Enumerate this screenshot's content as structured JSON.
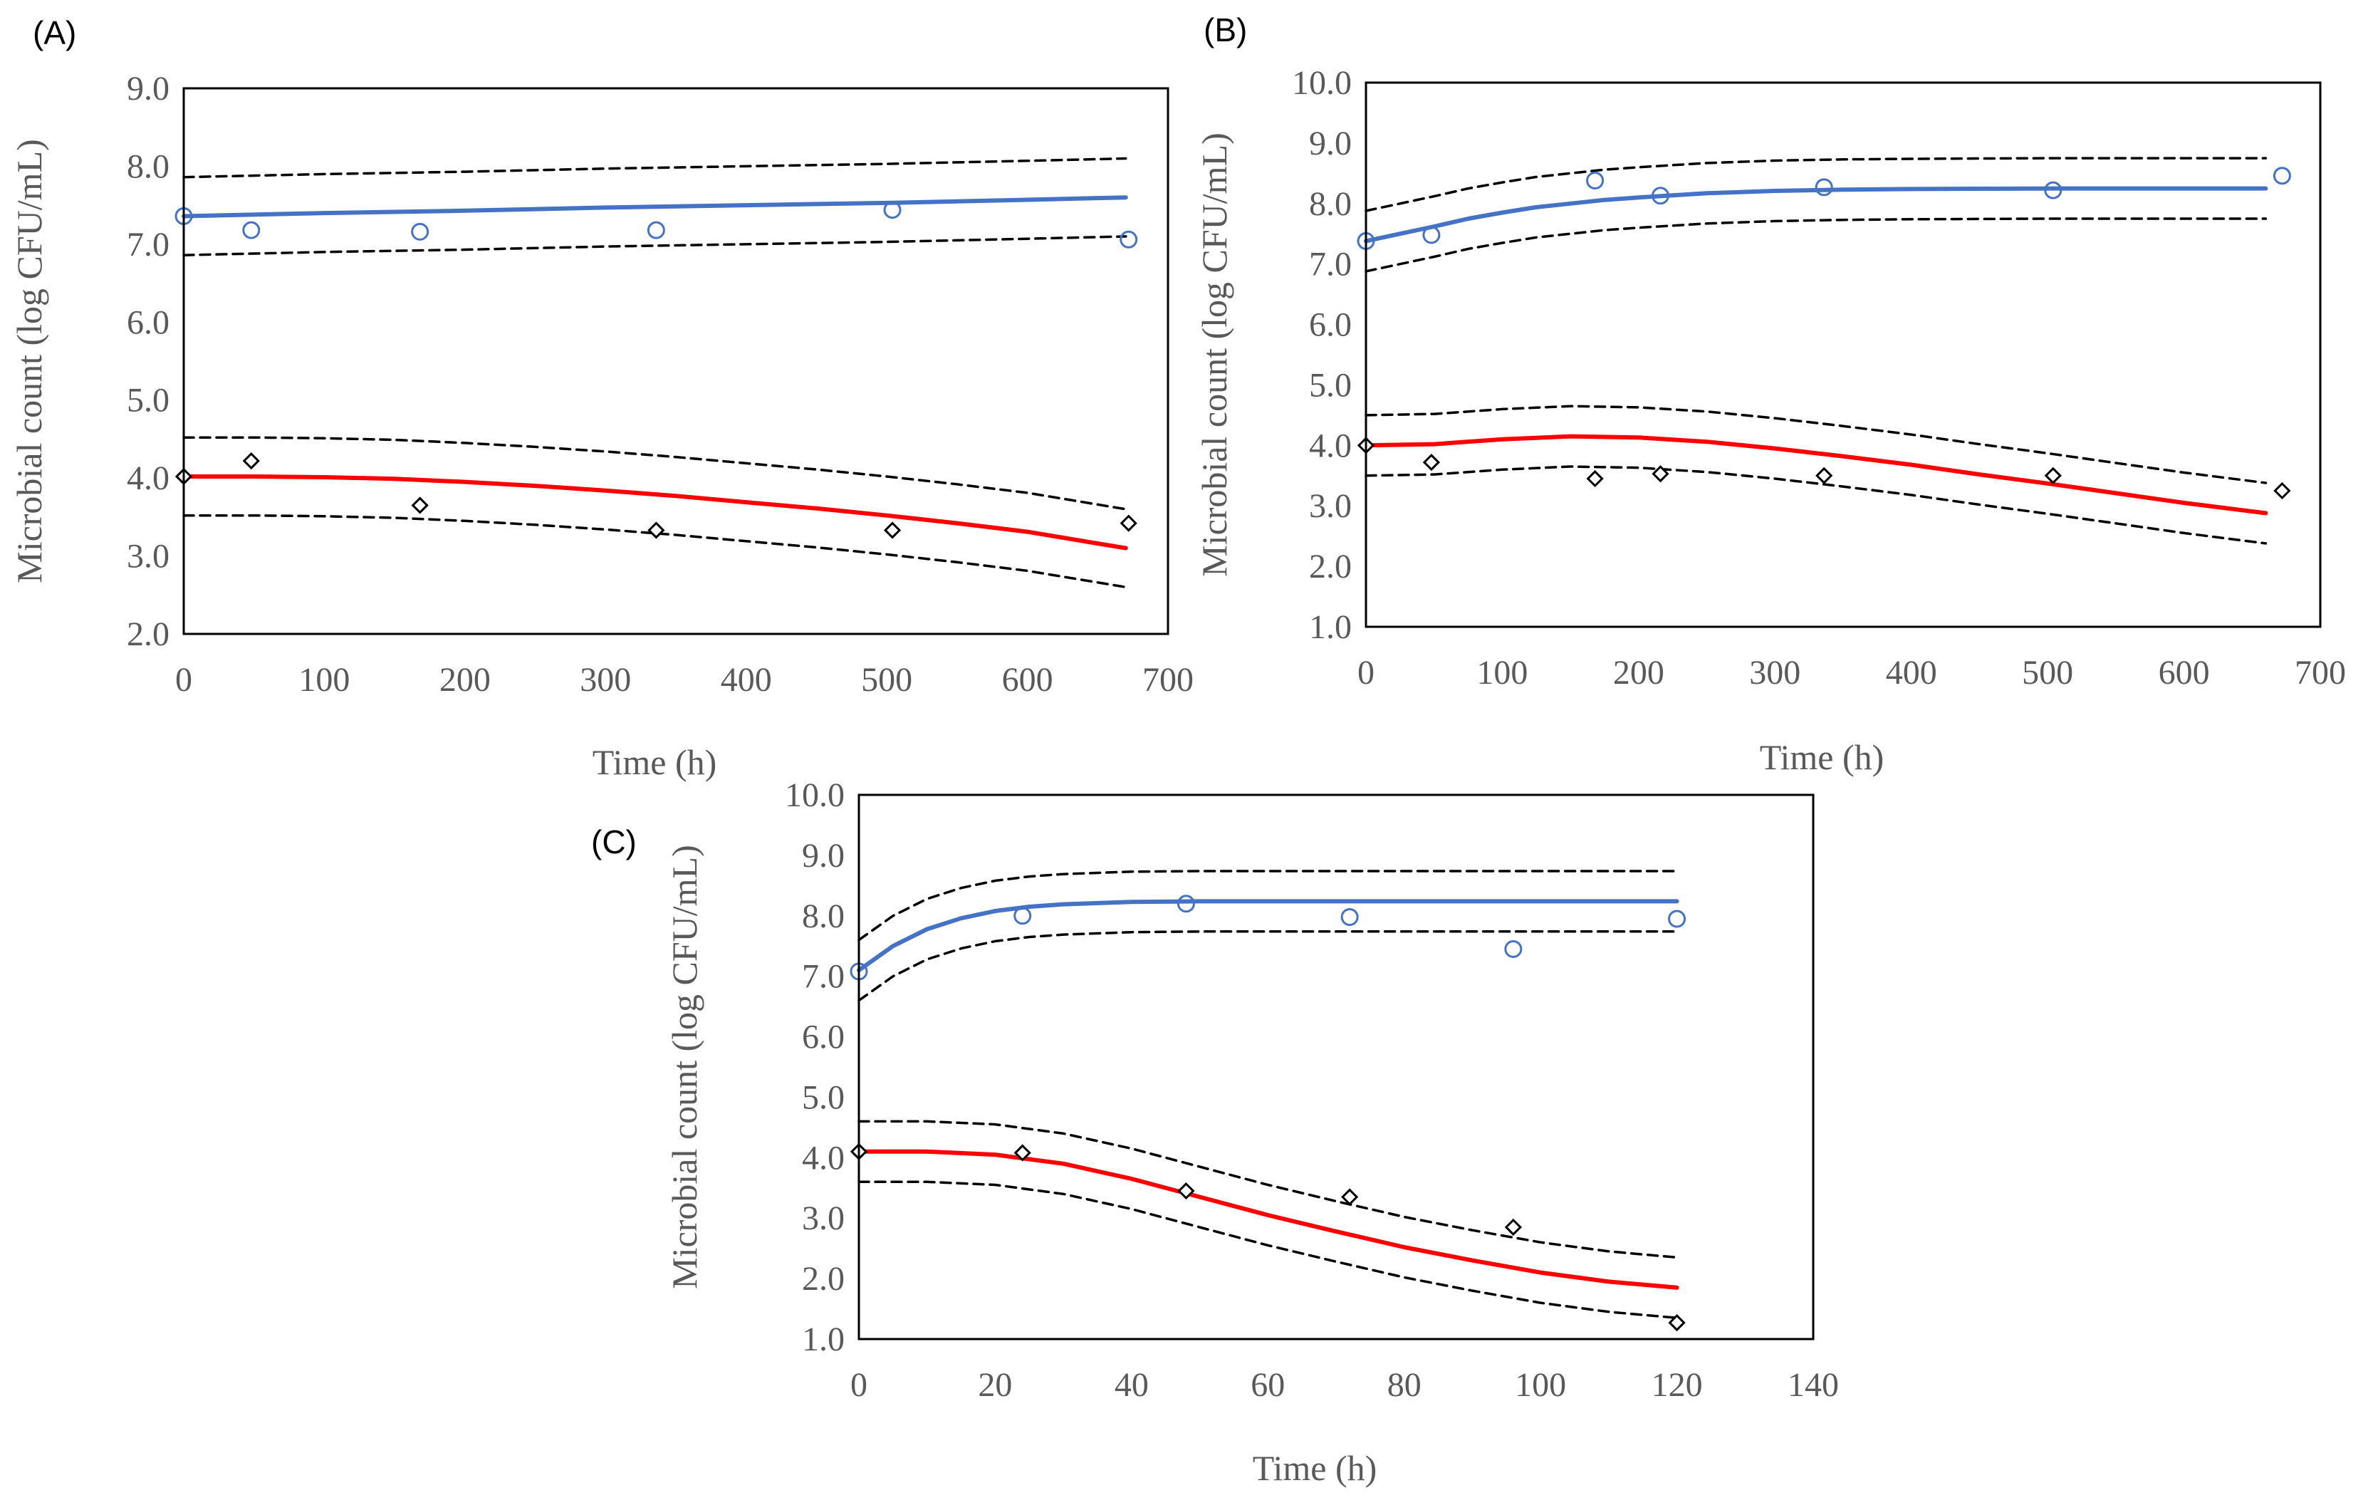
{
  "chart_data": [
    {
      "type": "line",
      "panel_label": "(A)",
      "xlabel": "Time (h)",
      "ylabel": "Microbial count (log CFU/mL)",
      "xlim": [
        0,
        700
      ],
      "ylim": [
        2.0,
        9.0
      ],
      "xticks": [
        "0",
        "100",
        "200",
        "300",
        "400",
        "500",
        "600",
        "700"
      ],
      "yticks": [
        "2.0",
        "3.0",
        "4.0",
        "5.0",
        "6.0",
        "7.0",
        "8.0",
        "9.0"
      ],
      "grid": false,
      "legend": "none",
      "series": [
        {
          "role": "fit",
          "group": "upper",
          "style": "solid",
          "color": "#4472C4",
          "x": [
            0,
            100,
            200,
            300,
            400,
            500,
            600,
            670
          ],
          "y": [
            7.36,
            7.4,
            7.43,
            7.47,
            7.5,
            7.53,
            7.57,
            7.6
          ]
        },
        {
          "role": "band",
          "group": "upper",
          "style": "dashed",
          "color": "#000000",
          "x": [
            0,
            100,
            200,
            300,
            400,
            500,
            600,
            670
          ],
          "y": [
            7.86,
            7.9,
            7.93,
            7.97,
            8.0,
            8.03,
            8.07,
            8.1
          ]
        },
        {
          "role": "band",
          "group": "upper",
          "style": "dashed",
          "color": "#000000",
          "x": [
            0,
            100,
            200,
            300,
            400,
            500,
            600,
            670
          ],
          "y": [
            6.86,
            6.9,
            6.93,
            6.97,
            7.0,
            7.03,
            7.07,
            7.1
          ]
        },
        {
          "role": "observed",
          "group": "upper",
          "marker": "circle",
          "color": "#4472C4",
          "x": [
            0,
            48,
            168,
            336,
            504,
            672
          ],
          "y": [
            7.36,
            7.18,
            7.16,
            7.18,
            7.44,
            7.06
          ]
        },
        {
          "role": "fit",
          "group": "lower",
          "style": "solid",
          "color": "#FF0000",
          "x": [
            0,
            50,
            100,
            150,
            200,
            250,
            300,
            350,
            400,
            450,
            500,
            550,
            600,
            670
          ],
          "y": [
            4.02,
            4.02,
            4.01,
            3.99,
            3.95,
            3.9,
            3.84,
            3.77,
            3.69,
            3.61,
            3.52,
            3.42,
            3.31,
            3.1
          ]
        },
        {
          "role": "band",
          "group": "lower",
          "style": "dashed",
          "color": "#000000",
          "x": [
            0,
            50,
            100,
            150,
            200,
            250,
            300,
            350,
            400,
            450,
            500,
            550,
            600,
            670
          ],
          "y": [
            4.52,
            4.52,
            4.51,
            4.49,
            4.45,
            4.4,
            4.34,
            4.27,
            4.19,
            4.11,
            4.02,
            3.92,
            3.81,
            3.6
          ]
        },
        {
          "role": "band",
          "group": "lower",
          "style": "dashed",
          "color": "#000000",
          "x": [
            0,
            50,
            100,
            150,
            200,
            250,
            300,
            350,
            400,
            450,
            500,
            550,
            600,
            670
          ],
          "y": [
            3.52,
            3.52,
            3.51,
            3.49,
            3.45,
            3.4,
            3.34,
            3.27,
            3.19,
            3.11,
            3.02,
            2.92,
            2.81,
            2.6
          ]
        },
        {
          "role": "observed",
          "group": "lower",
          "marker": "diamond",
          "color": "#000000",
          "x": [
            0,
            48,
            168,
            336,
            504,
            672
          ],
          "y": [
            4.02,
            4.22,
            3.65,
            3.33,
            3.33,
            3.42
          ]
        }
      ]
    },
    {
      "type": "line",
      "panel_label": "(B)",
      "xlabel": "Time (h)",
      "ylabel": "Microbial count (log CFU/mL)",
      "xlim": [
        0,
        700
      ],
      "ylim": [
        1.0,
        10.0
      ],
      "xticks": [
        "0",
        "100",
        "200",
        "300",
        "400",
        "500",
        "600",
        "700"
      ],
      "yticks": [
        "1.0",
        "2.0",
        "3.0",
        "4.0",
        "5.0",
        "6.0",
        "7.0",
        "8.0",
        "9.0",
        "10.0"
      ],
      "grid": false,
      "legend": "none",
      "series": [
        {
          "role": "fit",
          "group": "upper",
          "style": "solid",
          "color": "#4472C4",
          "x": [
            0,
            25,
            50,
            75,
            100,
            125,
            150,
            175,
            200,
            250,
            300,
            350,
            400,
            500,
            600,
            660
          ],
          "y": [
            7.38,
            7.5,
            7.62,
            7.75,
            7.85,
            7.94,
            8.0,
            8.06,
            8.1,
            8.17,
            8.21,
            8.23,
            8.24,
            8.25,
            8.25,
            8.25
          ]
        },
        {
          "role": "band",
          "group": "upper",
          "style": "dashed",
          "color": "#000000",
          "x": [
            0,
            25,
            50,
            75,
            100,
            125,
            150,
            175,
            200,
            250,
            300,
            350,
            400,
            500,
            600,
            660
          ],
          "y": [
            7.88,
            8.0,
            8.12,
            8.25,
            8.35,
            8.44,
            8.5,
            8.56,
            8.6,
            8.67,
            8.71,
            8.73,
            8.74,
            8.75,
            8.75,
            8.75
          ]
        },
        {
          "role": "band",
          "group": "upper",
          "style": "dashed",
          "color": "#000000",
          "x": [
            0,
            25,
            50,
            75,
            100,
            125,
            150,
            175,
            200,
            250,
            300,
            350,
            400,
            500,
            600,
            660
          ],
          "y": [
            6.88,
            7.0,
            7.12,
            7.25,
            7.35,
            7.44,
            7.5,
            7.56,
            7.6,
            7.67,
            7.71,
            7.73,
            7.74,
            7.75,
            7.75,
            7.75
          ]
        },
        {
          "role": "observed",
          "group": "upper",
          "marker": "circle",
          "color": "#4472C4",
          "x": [
            0,
            48,
            168,
            216,
            336,
            504,
            672
          ],
          "y": [
            7.38,
            7.48,
            8.38,
            8.13,
            8.27,
            8.22,
            8.46
          ]
        },
        {
          "role": "fit",
          "group": "lower",
          "style": "solid",
          "color": "#FF0000",
          "x": [
            0,
            50,
            100,
            150,
            200,
            250,
            300,
            350,
            400,
            450,
            500,
            550,
            600,
            660
          ],
          "y": [
            4.0,
            4.02,
            4.1,
            4.15,
            4.13,
            4.06,
            3.95,
            3.82,
            3.68,
            3.52,
            3.37,
            3.21,
            3.05,
            2.88
          ]
        },
        {
          "role": "band",
          "group": "lower",
          "style": "dashed",
          "color": "#000000",
          "x": [
            0,
            50,
            100,
            150,
            200,
            250,
            300,
            350,
            400,
            450,
            500,
            550,
            600,
            660
          ],
          "y": [
            4.5,
            4.52,
            4.6,
            4.65,
            4.63,
            4.56,
            4.45,
            4.32,
            4.18,
            4.02,
            3.87,
            3.71,
            3.55,
            3.38
          ]
        },
        {
          "role": "band",
          "group": "lower",
          "style": "dashed",
          "color": "#000000",
          "x": [
            0,
            50,
            100,
            150,
            200,
            250,
            300,
            350,
            400,
            450,
            500,
            550,
            600,
            660
          ],
          "y": [
            3.5,
            3.52,
            3.6,
            3.65,
            3.63,
            3.56,
            3.45,
            3.32,
            3.18,
            3.02,
            2.87,
            2.71,
            2.55,
            2.38
          ]
        },
        {
          "role": "observed",
          "group": "lower",
          "marker": "diamond",
          "color": "#000000",
          "x": [
            0,
            48,
            168,
            216,
            336,
            504,
            672
          ],
          "y": [
            4.0,
            3.72,
            3.45,
            3.53,
            3.5,
            3.5,
            3.25
          ]
        }
      ]
    },
    {
      "type": "line",
      "panel_label": "(C)",
      "xlabel": "Time (h)",
      "ylabel": "Microbial count (log CFU/mL)",
      "xlim": [
        0,
        140
      ],
      "ylim": [
        1.0,
        10.0
      ],
      "xticks": [
        "0",
        "20",
        "40",
        "60",
        "80",
        "100",
        "120",
        "140"
      ],
      "yticks": [
        "1.0",
        "2.0",
        "3.0",
        "4.0",
        "5.0",
        "6.0",
        "7.0",
        "8.0",
        "9.0",
        "10.0"
      ],
      "grid": false,
      "legend": "none",
      "series": [
        {
          "role": "fit",
          "group": "upper",
          "style": "solid",
          "color": "#4472C4",
          "x": [
            0,
            5,
            10,
            15,
            20,
            25,
            30,
            40,
            50,
            60,
            80,
            100,
            120
          ],
          "y": [
            7.1,
            7.5,
            7.78,
            7.96,
            8.08,
            8.15,
            8.19,
            8.23,
            8.24,
            8.24,
            8.24,
            8.24,
            8.24
          ]
        },
        {
          "role": "band",
          "group": "upper",
          "style": "dashed",
          "color": "#000000",
          "x": [
            0,
            5,
            10,
            15,
            20,
            25,
            30,
            40,
            50,
            60,
            80,
            100,
            120
          ],
          "y": [
            7.6,
            8.0,
            8.28,
            8.46,
            8.58,
            8.65,
            8.69,
            8.73,
            8.74,
            8.74,
            8.74,
            8.74,
            8.74
          ]
        },
        {
          "role": "band",
          "group": "upper",
          "style": "dashed",
          "color": "#000000",
          "x": [
            0,
            5,
            10,
            15,
            20,
            25,
            30,
            40,
            50,
            60,
            80,
            100,
            120
          ],
          "y": [
            6.6,
            7.0,
            7.28,
            7.46,
            7.58,
            7.65,
            7.69,
            7.73,
            7.74,
            7.74,
            7.74,
            7.74,
            7.74
          ]
        },
        {
          "role": "observed",
          "group": "upper",
          "marker": "circle",
          "color": "#4472C4",
          "x": [
            0,
            24,
            48,
            72,
            96,
            120
          ],
          "y": [
            7.08,
            8.0,
            8.2,
            7.98,
            7.45,
            7.95
          ]
        },
        {
          "role": "fit",
          "group": "lower",
          "style": "solid",
          "color": "#FF0000",
          "x": [
            0,
            10,
            20,
            30,
            40,
            50,
            60,
            70,
            80,
            90,
            100,
            110,
            120
          ],
          "y": [
            4.1,
            4.1,
            4.05,
            3.9,
            3.65,
            3.35,
            3.05,
            2.78,
            2.52,
            2.3,
            2.1,
            1.95,
            1.85
          ]
        },
        {
          "role": "band",
          "group": "lower",
          "style": "dashed",
          "color": "#000000",
          "x": [
            0,
            10,
            20,
            30,
            40,
            50,
            60,
            70,
            80,
            90,
            100,
            110,
            120
          ],
          "y": [
            4.6,
            4.6,
            4.55,
            4.4,
            4.15,
            3.85,
            3.55,
            3.28,
            3.02,
            2.8,
            2.6,
            2.45,
            2.35
          ]
        },
        {
          "role": "band",
          "group": "lower",
          "style": "dashed",
          "color": "#000000",
          "x": [
            0,
            10,
            20,
            30,
            40,
            50,
            60,
            70,
            80,
            90,
            100,
            110,
            120
          ],
          "y": [
            3.6,
            3.6,
            3.55,
            3.4,
            3.15,
            2.85,
            2.55,
            2.28,
            2.02,
            1.8,
            1.6,
            1.45,
            1.35
          ]
        },
        {
          "role": "observed",
          "group": "lower",
          "marker": "diamond",
          "color": "#000000",
          "x": [
            0,
            24,
            48,
            72,
            96,
            120
          ],
          "y": [
            4.1,
            4.08,
            3.45,
            3.35,
            2.85,
            1.27
          ]
        }
      ]
    }
  ]
}
